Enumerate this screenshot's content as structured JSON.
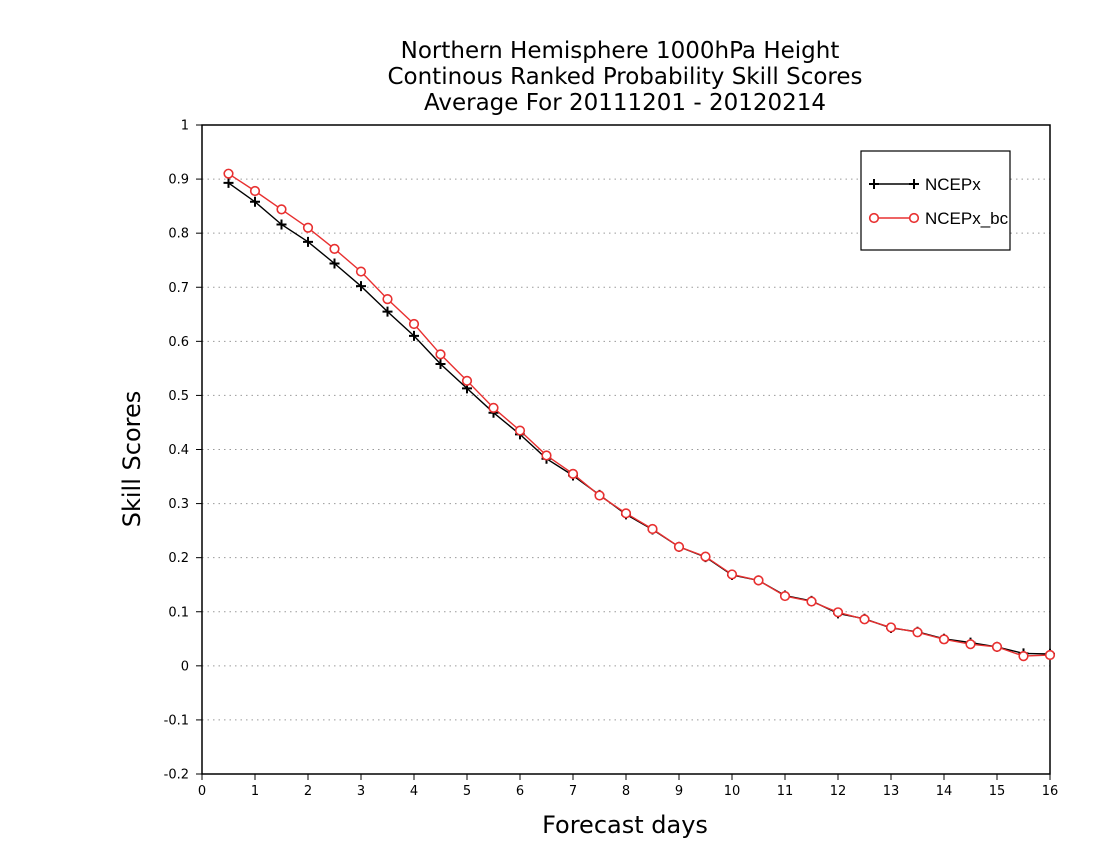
{
  "chart_data": {
    "type": "line",
    "title": [
      "Northern Hemisphere 1000hPa Height",
      "Continous Ranked Probability Skill Scores",
      "Average For 20111201 - 20120214"
    ],
    "xlabel": "Forecast days",
    "ylabel": "Skill Scores",
    "xlim": [
      0,
      16
    ],
    "ylim": [
      -0.2,
      1
    ],
    "xticks": [
      "0",
      "1",
      "2",
      "3",
      "4",
      "5",
      "6",
      "7",
      "8",
      "9",
      "10",
      "11",
      "12",
      "13",
      "14",
      "15",
      "16"
    ],
    "yticks": [
      "-0.2",
      "-0.1",
      "0",
      "0.1",
      "0.2",
      "0.3",
      "0.4",
      "0.5",
      "0.6",
      "0.7",
      "0.8",
      "0.9",
      "1"
    ],
    "grid": "horizontal dotted",
    "legend_position": "top-right",
    "x": [
      0.5,
      1,
      1.5,
      2,
      2.5,
      3,
      3.5,
      4,
      4.5,
      5,
      5.5,
      6,
      6.5,
      7,
      7.5,
      8,
      8.5,
      9,
      9.5,
      10,
      10.5,
      11,
      11.5,
      12,
      12.5,
      13,
      13.5,
      14,
      14.5,
      15,
      15.5,
      16
    ],
    "series": [
      {
        "name": "NCEPx",
        "color": "#000000",
        "marker": "plus",
        "values": [
          0.893,
          0.858,
          0.816,
          0.784,
          0.744,
          0.702,
          0.655,
          0.61,
          0.558,
          0.513,
          0.468,
          0.428,
          0.383,
          0.352,
          0.316,
          0.28,
          0.252,
          0.22,
          0.201,
          0.168,
          0.158,
          0.13,
          0.12,
          0.097,
          0.087,
          0.07,
          0.063,
          0.05,
          0.043,
          0.035,
          0.023,
          0.022
        ]
      },
      {
        "name": "NCEPx_bc",
        "color": "#e83030",
        "marker": "circle",
        "values": [
          0.91,
          0.878,
          0.844,
          0.81,
          0.771,
          0.729,
          0.678,
          0.632,
          0.576,
          0.527,
          0.477,
          0.435,
          0.389,
          0.355,
          0.315,
          0.282,
          0.253,
          0.22,
          0.202,
          0.169,
          0.158,
          0.129,
          0.119,
          0.099,
          0.086,
          0.071,
          0.062,
          0.049,
          0.04,
          0.035,
          0.018,
          0.02
        ]
      }
    ]
  }
}
